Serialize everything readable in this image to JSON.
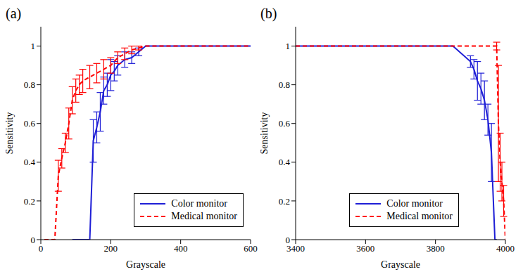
{
  "chart_data": [
    {
      "type": "line",
      "title": "(a)",
      "x_label": "Grayscale",
      "y_label": "Sensitivity",
      "xlim": [
        0,
        600
      ],
      "xticks": [
        0,
        200,
        400,
        600
      ],
      "ylim": [
        0,
        1.1
      ],
      "yticks": [
        0,
        0.2,
        0.4,
        0.6,
        0.8,
        1
      ],
      "legend": "lower right",
      "series": [
        {
          "name": "Color monitor",
          "color": "#1f1fd6",
          "line_style": "solid",
          "x": [
            90,
            140,
            150,
            160,
            170,
            180,
            190,
            200,
            210,
            220,
            240,
            260,
            280,
            300,
            600
          ],
          "values": [
            0,
            0,
            0.51,
            0.58,
            0.66,
            0.77,
            0.8,
            0.85,
            0.87,
            0.9,
            0.93,
            0.94,
            0.97,
            1,
            1
          ],
          "error": [
            null,
            null,
            0.11,
            0.08,
            0.1,
            0.07,
            0.06,
            0.08,
            0.05,
            0.05,
            0.04,
            0.03,
            0.02,
            null,
            null
          ]
        },
        {
          "name": "Medical monitor",
          "color": "#ff0000",
          "line_style": "dashed",
          "x": [
            10,
            20,
            30,
            40,
            50,
            60,
            70,
            80,
            90,
            100,
            110,
            120,
            140,
            160,
            180,
            200,
            220,
            240,
            260,
            280,
            300,
            600
          ],
          "values": [
            0,
            0,
            0,
            0,
            0.33,
            0.42,
            0.5,
            0.6,
            0.72,
            0.77,
            0.8,
            0.82,
            0.84,
            0.86,
            0.88,
            0.9,
            0.94,
            0.96,
            0.98,
            0.99,
            1,
            1
          ],
          "error": [
            null,
            null,
            null,
            null,
            0.08,
            0.05,
            0.05,
            0.08,
            0.07,
            0.06,
            0.05,
            0.06,
            0.06,
            0.05,
            0.05,
            0.04,
            0.03,
            0.03,
            0.02,
            0.01,
            null,
            null
          ]
        }
      ]
    },
    {
      "type": "line",
      "title": "(b)",
      "x_label": "Grayscale",
      "y_label": "Sensitivity",
      "xlim": [
        3400,
        4000
      ],
      "xticks": [
        3400,
        3600,
        3800,
        4000
      ],
      "ylim": [
        0,
        1.1
      ],
      "yticks": [
        0,
        0.2,
        0.4,
        0.6,
        0.8,
        1
      ],
      "legend": "lower right",
      "series": [
        {
          "name": "Color monitor",
          "color": "#1f1fd6",
          "line_style": "solid",
          "x": [
            3400,
            3850,
            3900,
            3910,
            3920,
            3930,
            3940,
            3950,
            3960,
            3970,
            3975
          ],
          "values": [
            1,
            1,
            0.92,
            0.88,
            0.82,
            0.78,
            0.72,
            0.62,
            0.45,
            0,
            0
          ],
          "error": [
            null,
            null,
            0.03,
            0.05,
            0.1,
            0.08,
            0.1,
            0.08,
            0.15,
            null,
            null
          ]
        },
        {
          "name": "Medical monitor",
          "color": "#ff0000",
          "line_style": "dashed",
          "x": [
            3400,
            3965,
            3975,
            3980,
            3985,
            3990,
            3995,
            4000
          ],
          "values": [
            1,
            1,
            1,
            0.6,
            0.4,
            0.3,
            0.2,
            0
          ],
          "error": [
            null,
            null,
            0.02,
            0.3,
            0.15,
            0.1,
            0.08,
            null
          ]
        }
      ]
    }
  ]
}
